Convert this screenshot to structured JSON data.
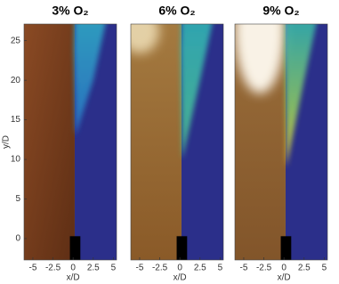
{
  "chart_data": [
    {
      "type": "image",
      "title": "3% O₂",
      "xlabel": "x/D",
      "ylabel": "y/D",
      "xlim": [
        -6.1,
        5.4
      ],
      "xticks": [
        -5,
        -2.5,
        0,
        2.5,
        5
      ],
      "ylim": [
        -2.7,
        27.1
      ],
      "yticks": [
        0,
        5,
        10,
        15,
        20,
        25
      ]
    },
    {
      "type": "image",
      "title": "6% O₂",
      "xlabel": "x/D",
      "xlim": [
        -6.1,
        5.4
      ],
      "xticks": [
        -5,
        -2.5,
        0,
        2.5,
        5
      ],
      "ylim": [
        -2.7,
        27.1
      ]
    },
    {
      "type": "image",
      "title": "9% O₂",
      "xlabel": "x/D",
      "xlim": [
        -6.1,
        5.4
      ],
      "xticks": [
        -5,
        -2.5,
        0,
        2.5,
        5
      ],
      "ylim": [
        -2.7,
        27.1
      ]
    }
  ]
}
